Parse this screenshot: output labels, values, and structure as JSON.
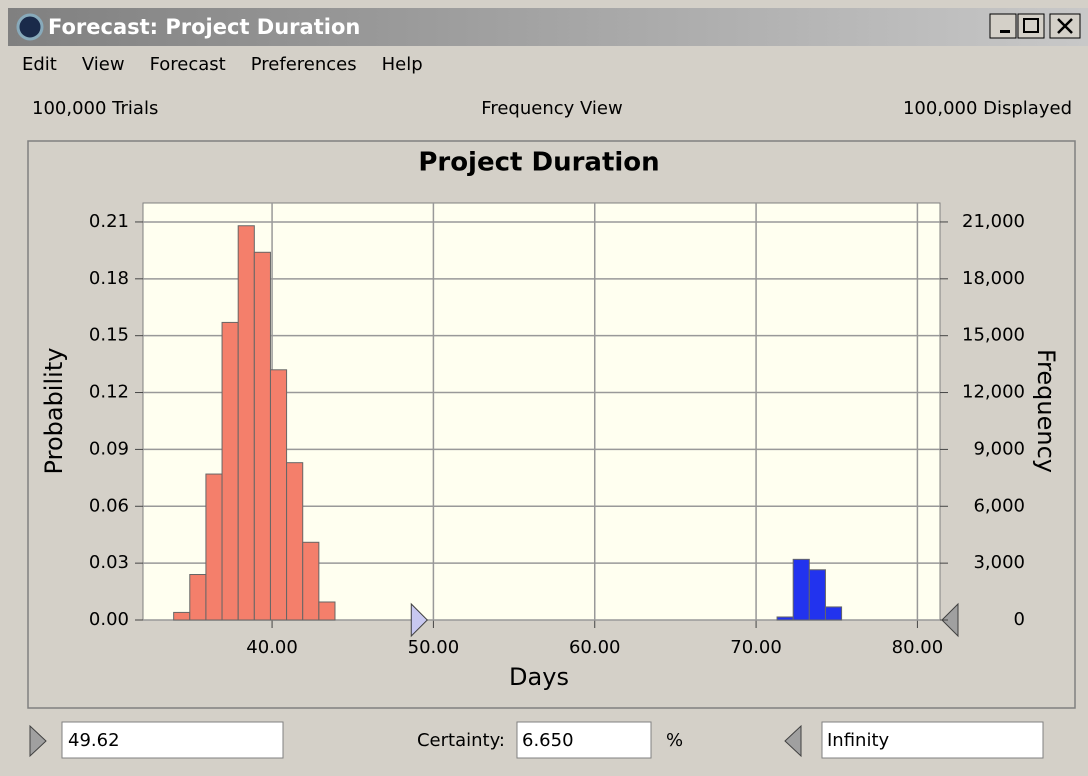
{
  "window": {
    "title": "Forecast: Project Duration"
  },
  "menu": [
    "Edit",
    "View",
    "Forecast",
    "Preferences",
    "Help"
  ],
  "status": {
    "trials": "100,000 Trials",
    "view": "Frequency View",
    "displayed": "100,000 Displayed"
  },
  "chart_data": {
    "type": "histogram",
    "title": "Project Duration",
    "x_label": "Days",
    "y_label": "Probability",
    "y2_label": "Frequency",
    "series": [
      {
        "color": "#f47f6b",
        "bins": [
          33.9,
          34.9,
          35.9,
          36.9,
          37.9,
          38.9,
          39.9,
          40.9,
          41.9,
          42.9,
          43.9
        ],
        "values": [
          0.004,
          0.024,
          0.077,
          0.157,
          0.208,
          0.194,
          0.132,
          0.083,
          0.041,
          0.0095
        ]
      },
      {
        "color": "#2233ee",
        "bins": [
          71.3,
          72.3,
          73.3,
          74.3,
          75.3
        ],
        "values": [
          0.0016,
          0.032,
          0.0265,
          0.0069
        ]
      }
    ],
    "xlim": [
      32,
      81.4
    ],
    "xticks": [
      {
        "value": 40,
        "label": "40.00"
      },
      {
        "value": 50,
        "label": "50.00"
      },
      {
        "value": 60,
        "label": "60.00"
      },
      {
        "value": 70,
        "label": "70.00"
      },
      {
        "value": 80,
        "label": "80.00"
      }
    ],
    "ylim": [
      0,
      0.22
    ],
    "yticks": [
      {
        "value": 0,
        "label": "0.00"
      },
      0.03,
      0.06,
      0.09,
      0.12,
      0.15,
      0.18,
      0.21
    ],
    "y2lim": [
      0,
      22000
    ],
    "y2ticks": [
      0,
      {
        "value": 3000,
        "label": "3,000"
      },
      {
        "value": 6000,
        "label": "6,000"
      },
      {
        "value": 9000,
        "label": "9,000"
      },
      {
        "value": 12000,
        "label": "12,000"
      },
      {
        "value": 15000,
        "label": "15,000"
      },
      {
        "value": 18000,
        "label": "18,000"
      },
      {
        "value": 21000,
        "label": "21,000"
      }
    ],
    "grid": true
  },
  "controls": {
    "lower": 49.62,
    "certainty_label": "Certainty:",
    "certainty": "6.650",
    "unit": "%",
    "upper": "Infinity"
  }
}
